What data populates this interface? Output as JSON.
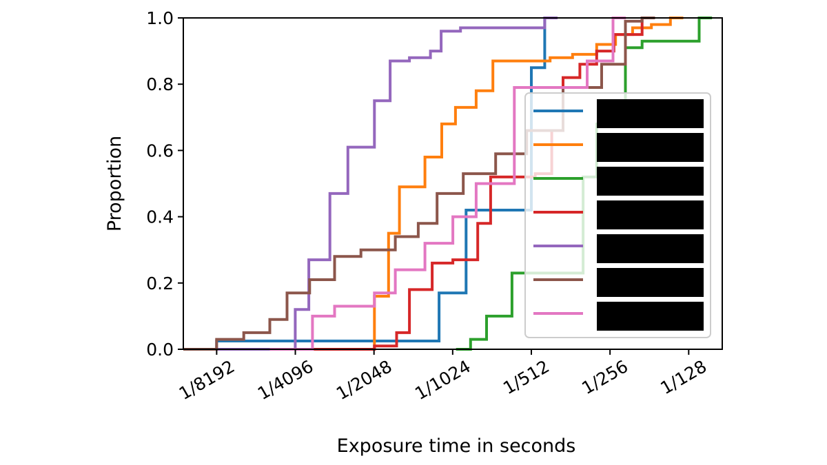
{
  "chart_data": {
    "type": "line",
    "subtype": "step-cdf",
    "title": "",
    "xlabel": "Exposure time in seconds",
    "ylabel": "Proportion",
    "x_scale": "log2",
    "x_unit": "seconds",
    "xlim": [
      9.1e-05,
      0.0105
    ],
    "ylim": [
      0,
      1.0
    ],
    "xticks": [
      0.0001220703125,
      0.000244140625,
      0.00048828125,
      0.0009765625,
      0.001953125,
      0.00390625,
      0.0078125
    ],
    "xtick_labels": [
      "1/8192",
      "1/4096",
      "1/2048",
      "1/1024",
      "1/512",
      "1/256",
      "1/128"
    ],
    "yticks": [
      0.0,
      0.2,
      0.4,
      0.6,
      0.8,
      1.0
    ],
    "ytick_labels": [
      "0.0",
      "0.2",
      "0.4",
      "0.6",
      "0.8",
      "1.0"
    ],
    "grid": false,
    "legend": {
      "placement": "lower right",
      "labels_redacted": true,
      "colors": [
        "#1f77b4",
        "#ff7f0e",
        "#2ca02c",
        "#d62728",
        "#9467bd",
        "#8c564b",
        "#e377c2"
      ]
    },
    "series": [
      {
        "color": "#1f77b4",
        "x": [
          9.1e-05,
          0.000122,
          0.000866,
          0.001099,
          0.001953,
          0.002197
        ],
        "y": [
          0.0,
          0.025,
          0.17,
          0.42,
          0.85,
          1.0
        ]
      },
      {
        "color": "#ff7f0e",
        "x": [
          0.000131,
          0.00049,
          0.000555,
          0.000611,
          0.000765,
          0.000887,
          0.001001,
          0.001201,
          0.001392,
          0.002304,
          0.002809,
          0.003473,
          0.004103,
          0.004766,
          0.005626,
          0.006651
        ],
        "y": [
          0.0,
          0.16,
          0.35,
          0.49,
          0.58,
          0.68,
          0.73,
          0.78,
          0.87,
          0.88,
          0.89,
          0.92,
          0.95,
          0.97,
          0.98,
          1.0
        ]
      },
      {
        "color": "#2ca02c",
        "x": [
          0.001006,
          0.001143,
          0.001316,
          0.001647,
          0.003081,
          0.003473,
          0.004475,
          0.005183,
          0.00857
        ],
        "y": [
          0.0,
          0.03,
          0.1,
          0.23,
          0.52,
          0.68,
          0.91,
          0.93,
          1.0
        ]
      },
      {
        "color": "#d62728",
        "x": [
          0.000221,
          0.00049,
          0.000596,
          0.000667,
          0.000815,
          0.000978,
          0.001218,
          0.001364,
          0.002021,
          0.002338,
          0.002582,
          0.002994,
          0.003473,
          0.004042,
          0.005183
        ],
        "y": [
          0.0,
          0.01,
          0.05,
          0.18,
          0.26,
          0.27,
          0.38,
          0.52,
          0.53,
          0.66,
          0.82,
          0.86,
          0.9,
          0.95,
          1.0
        ]
      },
      {
        "color": "#9467bd",
        "x": [
          9.1e-05,
          0.000244,
          0.000275,
          0.000331,
          0.000388,
          0.00049,
          0.000563,
          0.000667,
          0.000803,
          0.000882,
          0.001046,
          0.002197
        ],
        "y": [
          0.0,
          0.12,
          0.27,
          0.47,
          0.61,
          0.75,
          0.87,
          0.88,
          0.9,
          0.96,
          0.97,
          1.0
        ]
      },
      {
        "color": "#8c564b",
        "x": [
          9.1e-05,
          0.000122,
          0.000155,
          0.000195,
          0.000227,
          0.000277,
          0.000345,
          0.000435,
          0.000589,
          0.000721,
          0.000851,
          0.001072,
          0.001426,
          0.001874,
          0.002582,
          0.003628,
          0.004475,
          0.005183
        ],
        "y": [
          0.0,
          0.03,
          0.05,
          0.09,
          0.17,
          0.21,
          0.28,
          0.3,
          0.34,
          0.38,
          0.47,
          0.53,
          0.59,
          0.66,
          0.79,
          0.86,
          0.99,
          1.0
        ]
      },
      {
        "color": "#e377c2",
        "x": [
          0.000195,
          0.000284,
          0.000345,
          0.00049,
          0.000589,
          0.000765,
          0.000978,
          0.001201,
          0.001681,
          0.003194,
          0.004011
        ],
        "y": [
          0.0,
          0.1,
          0.13,
          0.17,
          0.24,
          0.32,
          0.4,
          0.5,
          0.79,
          0.87,
          1.0
        ]
      }
    ]
  }
}
